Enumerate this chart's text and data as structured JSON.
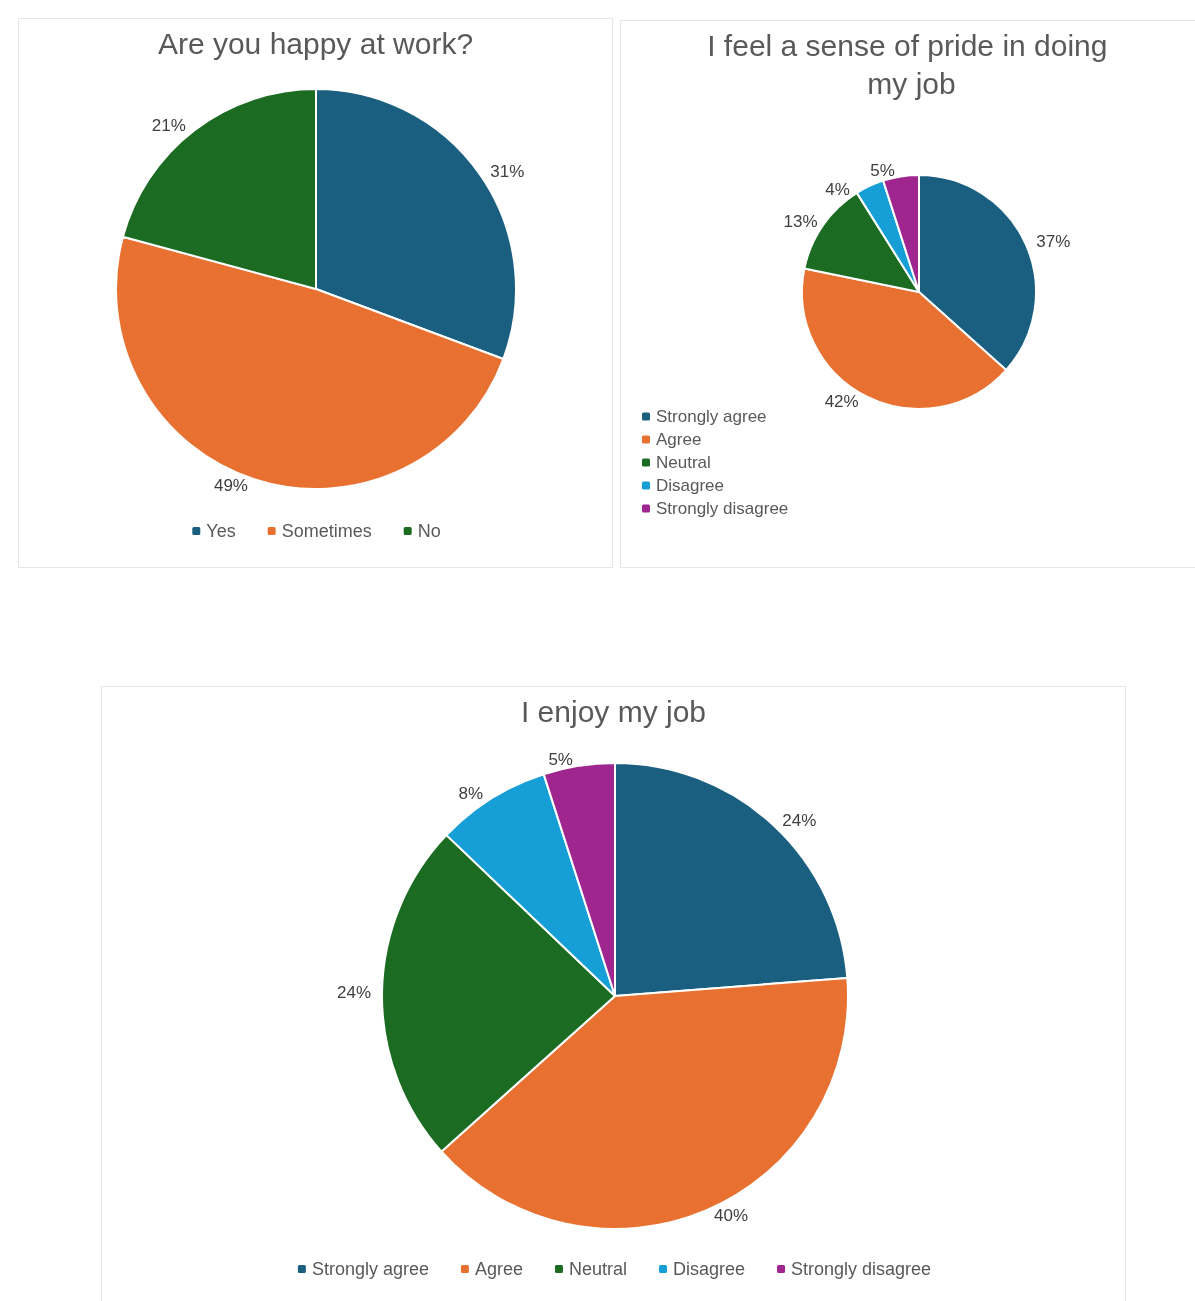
{
  "chart_data": [
    {
      "type": "pie",
      "title": "Are you happy at work?",
      "categories": [
        "Yes",
        "Sometimes",
        "No"
      ],
      "values": [
        31,
        49,
        21
      ],
      "value_labels": [
        "31%",
        "49%",
        "21%"
      ],
      "colors": [
        "#1a5e80",
        "#e87131",
        "#1b6b22"
      ],
      "legend": "bottom"
    },
    {
      "type": "pie",
      "title": "I feel a sense of pride in doing my job",
      "categories": [
        "Strongly agree",
        "Agree",
        "Neutral",
        "Disagree",
        "Strongly disagree"
      ],
      "values": [
        37,
        42,
        13,
        4,
        5
      ],
      "value_labels": [
        "37%",
        "42%",
        "13%",
        "4%",
        "5%"
      ],
      "colors": [
        "#1a5e80",
        "#e87131",
        "#1b6b22",
        "#159fd6",
        "#a0268f"
      ],
      "legend": "bottom left"
    },
    {
      "type": "pie",
      "title": "I enjoy my job",
      "categories": [
        "Strongly agree",
        "Agree",
        "Neutral",
        "Disagree",
        "Strongly disagree"
      ],
      "values": [
        24,
        40,
        24,
        8,
        5
      ],
      "value_labels": [
        "24%",
        "40%",
        "24%",
        "8%",
        "5%"
      ],
      "colors": [
        "#1a5e80",
        "#e87131",
        "#1b6b22",
        "#159fd6",
        "#a0268f"
      ],
      "legend": "bottom"
    }
  ]
}
